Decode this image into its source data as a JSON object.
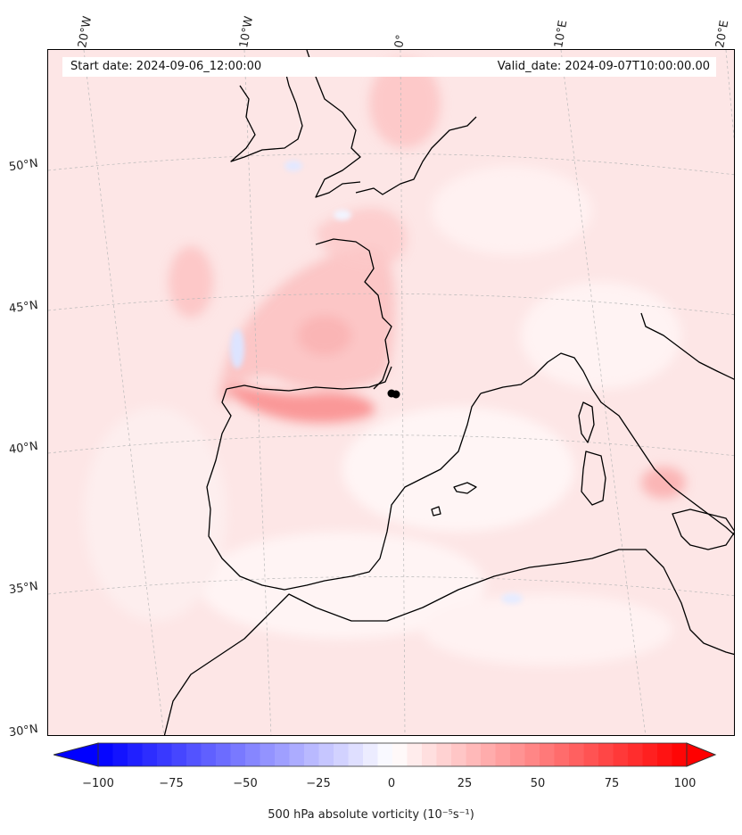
{
  "header": {
    "start_date": "Start date: 2024-09-06_12:00:00",
    "valid_date": "Valid_date: 2024-09-07T10:00:00.00"
  },
  "axes": {
    "longitude_labels": [
      "20°W",
      "10°W",
      "0°",
      "10°E",
      "20°E"
    ],
    "latitude_labels": [
      "50°N",
      "45°N",
      "40°N",
      "35°N",
      "30°N"
    ]
  },
  "colorbar": {
    "label": "500 hPa absolute vorticity (10⁻⁵s⁻¹)",
    "tick_labels": [
      "−100",
      "−75",
      "−50",
      "−25",
      "0",
      "25",
      "50",
      "75",
      "100"
    ],
    "min": -100,
    "max": 100,
    "step": 5,
    "color_negative": "#0000ff",
    "color_positive": "#ff0000",
    "extend": "both"
  },
  "colors": {
    "coastline": "#000000",
    "background_field": "#fde8e8",
    "gridline": "#aaaaaa"
  }
}
